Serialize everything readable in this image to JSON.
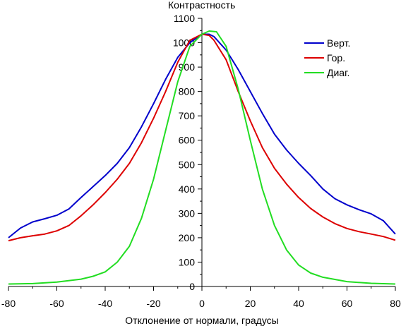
{
  "chart_data": {
    "type": "line",
    "title": "",
    "ylabel": "Контрастность",
    "xlabel": "Отклонение от нормали, градусы",
    "xlim": [
      -80,
      80
    ],
    "ylim": [
      0,
      1100
    ],
    "x_ticks": [
      "-80",
      "-60",
      "-40",
      "-20",
      "0",
      "20",
      "40",
      "60",
      "80"
    ],
    "y_ticks": [
      "0",
      "100",
      "200",
      "300",
      "400",
      "500",
      "600",
      "700",
      "800",
      "900",
      "1000",
      "1100"
    ],
    "legend_position": "top-right",
    "series": [
      {
        "name": "Верт.",
        "color": "#0000cc",
        "points": [
          [
            -80,
            200
          ],
          [
            -75,
            240
          ],
          [
            -70,
            265
          ],
          [
            -65,
            278
          ],
          [
            -60,
            292
          ],
          [
            -55,
            318
          ],
          [
            -50,
            365
          ],
          [
            -45,
            410
          ],
          [
            -40,
            455
          ],
          [
            -35,
            505
          ],
          [
            -30,
            570
          ],
          [
            -25,
            655
          ],
          [
            -20,
            750
          ],
          [
            -15,
            850
          ],
          [
            -10,
            940
          ],
          [
            -5,
            1000
          ],
          [
            0,
            1035
          ],
          [
            3,
            1035
          ],
          [
            5,
            1025
          ],
          [
            10,
            970
          ],
          [
            15,
            890
          ],
          [
            20,
            800
          ],
          [
            25,
            710
          ],
          [
            30,
            625
          ],
          [
            35,
            560
          ],
          [
            40,
            505
          ],
          [
            45,
            455
          ],
          [
            50,
            400
          ],
          [
            55,
            360
          ],
          [
            60,
            335
          ],
          [
            65,
            315
          ],
          [
            70,
            298
          ],
          [
            75,
            270
          ],
          [
            80,
            215
          ]
        ]
      },
      {
        "name": "Гор.",
        "color": "#dd0000",
        "points": [
          [
            -80,
            188
          ],
          [
            -75,
            200
          ],
          [
            -70,
            208
          ],
          [
            -65,
            215
          ],
          [
            -60,
            228
          ],
          [
            -55,
            250
          ],
          [
            -50,
            290
          ],
          [
            -45,
            335
          ],
          [
            -40,
            385
          ],
          [
            -35,
            440
          ],
          [
            -30,
            505
          ],
          [
            -25,
            590
          ],
          [
            -20,
            690
          ],
          [
            -15,
            800
          ],
          [
            -10,
            920
          ],
          [
            -5,
            1010
          ],
          [
            0,
            1035
          ],
          [
            3,
            1030
          ],
          [
            5,
            1010
          ],
          [
            10,
            930
          ],
          [
            15,
            800
          ],
          [
            20,
            680
          ],
          [
            25,
            570
          ],
          [
            30,
            485
          ],
          [
            35,
            420
          ],
          [
            40,
            365
          ],
          [
            45,
            320
          ],
          [
            50,
            285
          ],
          [
            55,
            258
          ],
          [
            60,
            238
          ],
          [
            65,
            225
          ],
          [
            70,
            215
          ],
          [
            75,
            205
          ],
          [
            80,
            190
          ]
        ]
      },
      {
        "name": "Диаг.",
        "color": "#22dd22",
        "points": [
          [
            -80,
            10
          ],
          [
            -70,
            12
          ],
          [
            -60,
            18
          ],
          [
            -50,
            30
          ],
          [
            -45,
            42
          ],
          [
            -40,
            60
          ],
          [
            -35,
            100
          ],
          [
            -30,
            165
          ],
          [
            -25,
            280
          ],
          [
            -20,
            440
          ],
          [
            -15,
            640
          ],
          [
            -10,
            840
          ],
          [
            -5,
            985
          ],
          [
            0,
            1035
          ],
          [
            3,
            1048
          ],
          [
            6,
            1045
          ],
          [
            10,
            985
          ],
          [
            15,
            810
          ],
          [
            20,
            600
          ],
          [
            25,
            400
          ],
          [
            30,
            250
          ],
          [
            35,
            150
          ],
          [
            40,
            88
          ],
          [
            45,
            55
          ],
          [
            50,
            38
          ],
          [
            60,
            20
          ],
          [
            70,
            13
          ],
          [
            80,
            10
          ]
        ]
      }
    ]
  }
}
